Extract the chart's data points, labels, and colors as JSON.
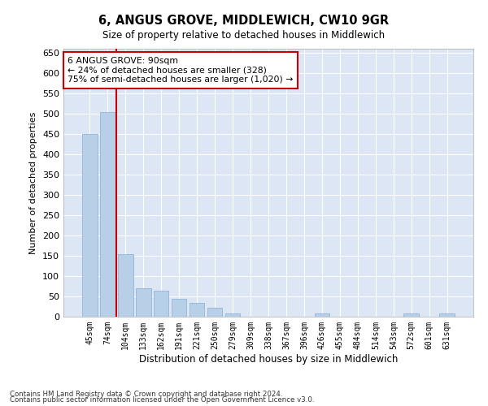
{
  "title": "6, ANGUS GROVE, MIDDLEWICH, CW10 9GR",
  "subtitle": "Size of property relative to detached houses in Middlewich",
  "xlabel": "Distribution of detached houses by size in Middlewich",
  "ylabel": "Number of detached properties",
  "footnote1": "Contains HM Land Registry data © Crown copyright and database right 2024.",
  "footnote2": "Contains public sector information licensed under the Open Government Licence v3.0.",
  "categories": [
    "45sqm",
    "74sqm",
    "104sqm",
    "133sqm",
    "162sqm",
    "191sqm",
    "221sqm",
    "250sqm",
    "279sqm",
    "309sqm",
    "338sqm",
    "367sqm",
    "396sqm",
    "426sqm",
    "455sqm",
    "484sqm",
    "514sqm",
    "543sqm",
    "572sqm",
    "601sqm",
    "631sqm"
  ],
  "values": [
    450,
    505,
    155,
    70,
    65,
    45,
    35,
    22,
    8,
    0,
    0,
    0,
    0,
    8,
    0,
    0,
    0,
    0,
    8,
    0,
    8
  ],
  "bar_color": "#b8cfe8",
  "bar_edge_color": "#93b5d8",
  "background_color": "#dce6f5",
  "grid_color": "#ffffff",
  "vline_color": "#cc0000",
  "vline_pos": 1.5,
  "annotation_text": "6 ANGUS GROVE: 90sqm\n← 24% of detached houses are smaller (328)\n75% of semi-detached houses are larger (1,020) →",
  "annotation_box_color": "#ffffff",
  "annotation_box_edge_color": "#cc0000",
  "ylim": [
    0,
    660
  ],
  "yticks": [
    0,
    50,
    100,
    150,
    200,
    250,
    300,
    350,
    400,
    450,
    500,
    550,
    600,
    650
  ]
}
